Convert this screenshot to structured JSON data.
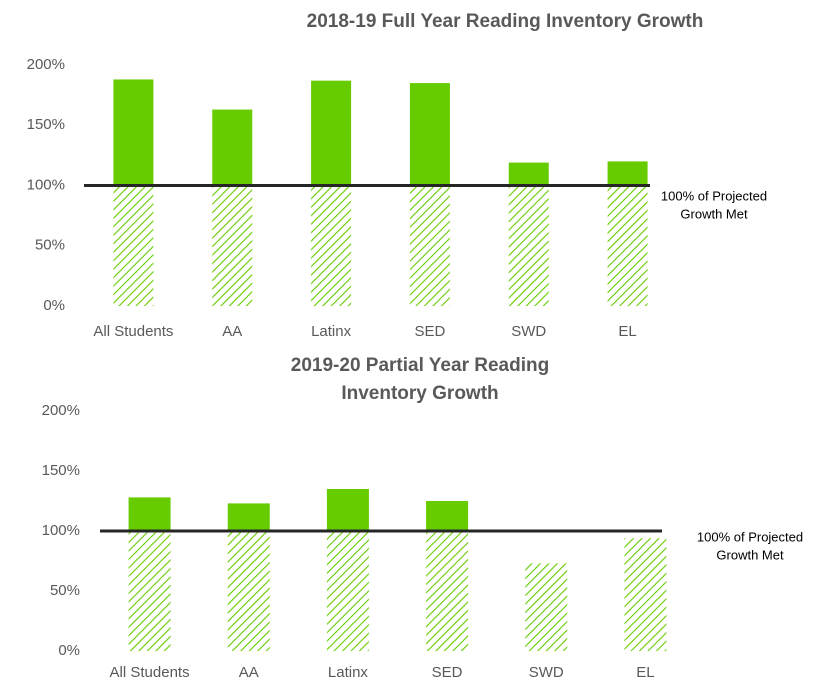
{
  "chart_data": [
    {
      "type": "bar",
      "title": [
        "2018-19 Full Year Reading Inventory Growth"
      ],
      "categories": [
        "All Students",
        "AA",
        "Latinx",
        "SED",
        "SWD",
        "EL"
      ],
      "values": [
        188,
        163,
        187,
        185,
        119,
        120
      ],
      "color": "#66cc00",
      "ylim": [
        0,
        200
      ],
      "yticks": [
        {
          "value": 0,
          "label": "0%"
        },
        {
          "value": 50,
          "label": "50%"
        },
        {
          "value": 100,
          "label": "100%"
        },
        {
          "value": 150,
          "label": "150%"
        },
        {
          "value": 200,
          "label": "200%"
        }
      ],
      "reference_line": 100,
      "annotation": [
        "100% of Projected",
        "Growth Met"
      ]
    },
    {
      "type": "bar",
      "title": [
        "2019-20 Partial Year Reading",
        "Inventory Growth"
      ],
      "categories": [
        "All Students",
        "AA",
        "Latinx",
        "SED",
        "SWD",
        "EL"
      ],
      "values": [
        128,
        123,
        135,
        125,
        73,
        94
      ],
      "color": "#66cc00",
      "ylim": [
        0,
        200
      ],
      "yticks": [
        {
          "value": 0,
          "label": "0%"
        },
        {
          "value": 50,
          "label": "50%"
        },
        {
          "value": 100,
          "label": "100%"
        },
        {
          "value": 150,
          "label": "150%"
        },
        {
          "value": 200,
          "label": "200%"
        }
      ],
      "reference_line": 100,
      "annotation": [
        "100% of Projected",
        "Growth Met"
      ]
    }
  ]
}
